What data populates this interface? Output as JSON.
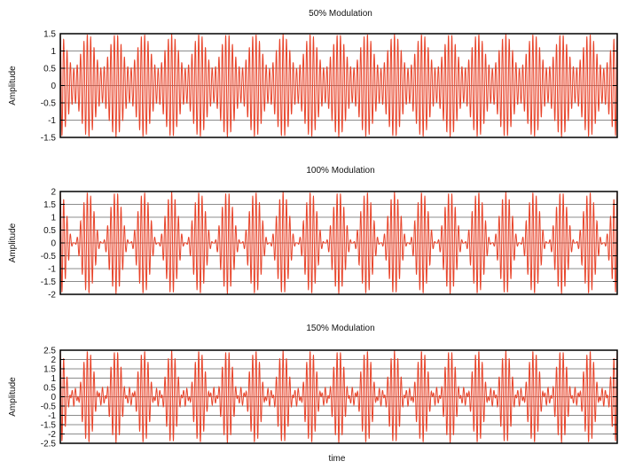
{
  "figure": {
    "xlabel": "time",
    "colors": {
      "signal": "#e8442a",
      "grid": "#8c8c8c",
      "frame": "#000000",
      "background": "#ffffff"
    }
  },
  "chart_data": [
    {
      "type": "line",
      "title": "50% Modulation",
      "ylabel": "Amplitude",
      "xlabel": "",
      "modulation_index": 0.5,
      "ylim": [
        -1.5,
        1.5
      ],
      "yticks": [
        -1.5,
        -1,
        -0.5,
        0,
        0.5,
        1,
        1.5
      ],
      "ytick_labels": [
        "-1.5",
        "-1",
        "-0.5",
        "0",
        "0.5",
        "1",
        "1.5"
      ],
      "grid": true,
      "x_tick_labels_shown": false,
      "carrier_cycles": 165,
      "envelope_cycles": 20,
      "envelope_formula": "1 + m*cos(2*pi*fm*t)",
      "series": [
        {
          "values": []
        }
      ]
    },
    {
      "type": "line",
      "title": "100% Modulation",
      "ylabel": "Amplitude",
      "xlabel": "",
      "modulation_index": 1.0,
      "ylim": [
        -2,
        2
      ],
      "yticks": [
        -2,
        -1.5,
        -1,
        -0.5,
        0,
        0.5,
        1,
        1.5,
        2
      ],
      "ytick_labels": [
        "-2",
        "-1.5",
        "-1",
        "-0.5",
        "0",
        "0.5",
        "1",
        "1.5",
        "2"
      ],
      "grid": true,
      "x_tick_labels_shown": false,
      "carrier_cycles": 165,
      "envelope_cycles": 20,
      "envelope_formula": "1 + m*cos(2*pi*fm*t)",
      "series": [
        {
          "values": []
        }
      ]
    },
    {
      "type": "line",
      "title": "150% Modulation",
      "ylabel": "Amplitude",
      "xlabel": "time",
      "modulation_index": 1.5,
      "ylim": [
        -2.5,
        2.5
      ],
      "yticks": [
        -2.5,
        -2,
        -1.5,
        -1,
        -0.5,
        0,
        0.5,
        1,
        1.5,
        2,
        2.5
      ],
      "ytick_labels": [
        "-2.5",
        "-2",
        "-1.5",
        "-1",
        "-0.5",
        "0",
        "0.5",
        "1",
        "1.5",
        "2",
        "2.5"
      ],
      "grid": true,
      "x_tick_labels_shown": false,
      "carrier_cycles": 165,
      "envelope_cycles": 20,
      "envelope_formula": "1 + m*cos(2*pi*fm*t)",
      "series": [
        {
          "values": []
        }
      ]
    }
  ]
}
